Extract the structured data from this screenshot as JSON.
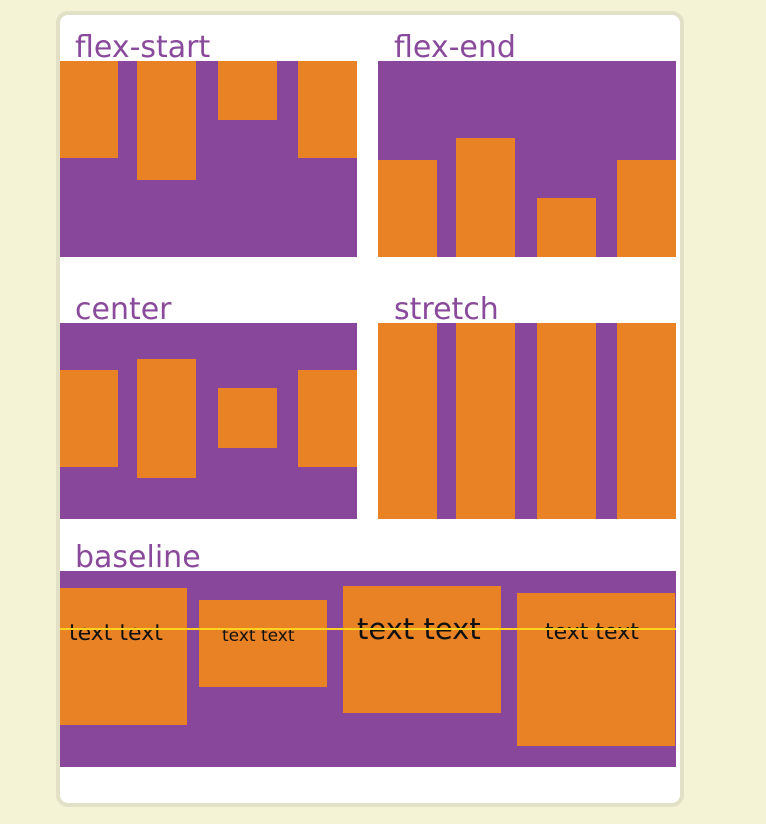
{
  "colors": {
    "background": "#f5f3d6",
    "card": "#ffffff",
    "container": "#88479a",
    "item": "#e88225",
    "label": "#8a4a9b",
    "baseline_guide": "#ffd21f"
  },
  "panels": {
    "flex_start": {
      "label": "flex-start"
    },
    "flex_end": {
      "label": "flex-end"
    },
    "center": {
      "label": "center"
    },
    "stretch": {
      "label": "stretch"
    },
    "baseline": {
      "label": "baseline",
      "items": [
        {
          "text": "text text"
        },
        {
          "text": "text text"
        },
        {
          "text": "text text"
        },
        {
          "text": "text text"
        }
      ]
    }
  }
}
